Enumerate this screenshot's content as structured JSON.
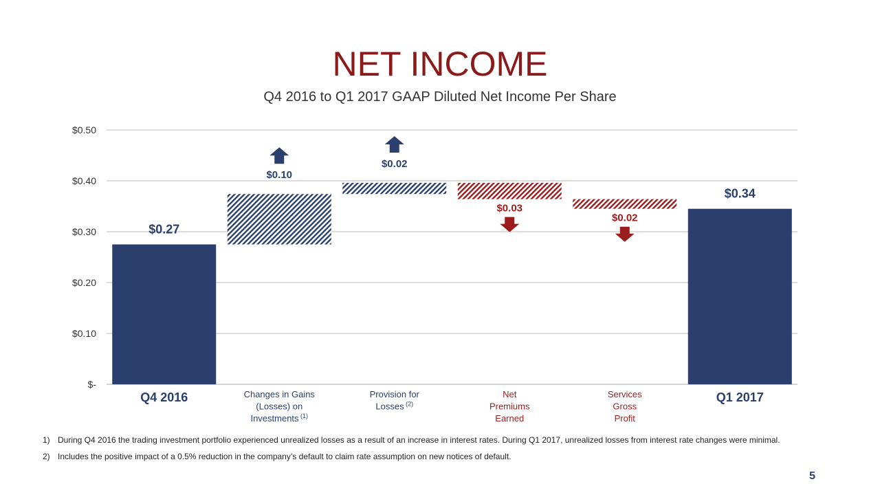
{
  "title": "NET INCOME",
  "colors": {
    "increase": "#2a3f6e",
    "decrease": "#9b1c1c",
    "total": "#2a3f6e",
    "title": "#8b1a1a"
  },
  "chart_data": {
    "type": "bar",
    "subtype": "waterfall",
    "title": "Q4 2016 to Q1 2017 GAAP Diluted Net Income Per Share",
    "ylim": [
      0,
      0.5
    ],
    "yticks": [
      0,
      0.1,
      0.2,
      0.3,
      0.4,
      0.5
    ],
    "ytick_labels": [
      "$-",
      "$0.10",
      "$0.20",
      "$0.30",
      "$0.40",
      "$0.50"
    ],
    "grid": true,
    "categories": [
      {
        "lines": [
          "Q4 2016"
        ],
        "sup": "",
        "kind": "total"
      },
      {
        "lines": [
          "Changes in Gains",
          "(Losses) on",
          "Investments"
        ],
        "sup": "(1)",
        "kind": "increase"
      },
      {
        "lines": [
          "Provision for",
          "Losses"
        ],
        "sup": "(2)",
        "kind": "increase"
      },
      {
        "lines": [
          "Net",
          "Premiums",
          "Earned"
        ],
        "sup": "",
        "kind": "decrease"
      },
      {
        "lines": [
          "Services",
          "Gross",
          "Profit"
        ],
        "sup": "",
        "kind": "decrease"
      },
      {
        "lines": [
          "Q1 2017"
        ],
        "sup": "",
        "kind": "total"
      }
    ],
    "bars": [
      {
        "start": 0,
        "end": 0.275,
        "label": "$0.27"
      },
      {
        "start": 0.275,
        "end": 0.374,
        "label": "$0.10"
      },
      {
        "start": 0.374,
        "end": 0.396,
        "label": "$0.02"
      },
      {
        "start": 0.396,
        "end": 0.364,
        "label": "$0.03"
      },
      {
        "start": 0.364,
        "end": 0.345,
        "label": "$0.02"
      },
      {
        "start": 0,
        "end": 0.345,
        "label": "$0.34"
      }
    ]
  },
  "footnotes": [
    {
      "num": "1)",
      "text": "During Q4 2016 the trading investment portfolio experienced unrealized losses as a result of an increase in interest rates.  During Q1 2017, unrealized losses from interest rate changes were minimal."
    },
    {
      "num": "2)",
      "text": "Includes the positive impact of a 0.5% reduction in the company’s default to claim rate assumption on new notices of default."
    }
  ],
  "page_number": "5"
}
